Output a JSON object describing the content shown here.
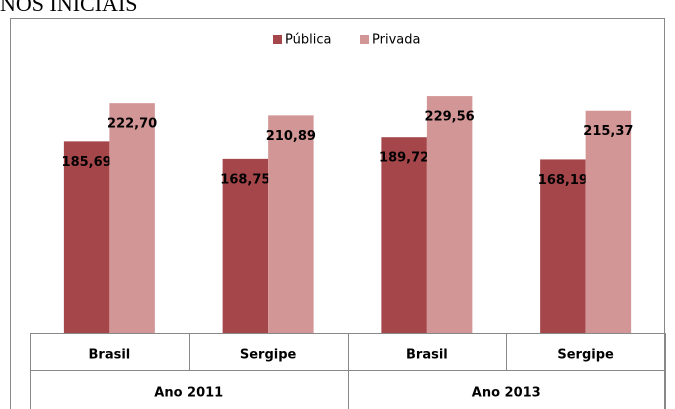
{
  "chart_data": {
    "type": "bar",
    "title": "NOS INICIAIS",
    "categories": [
      "Brasil",
      "Sergipe",
      "Brasil",
      "Sergipe"
    ],
    "groups": [
      {
        "label": "Ano 2011",
        "span": 2
      },
      {
        "label": "Ano 2013",
        "span": 2
      }
    ],
    "series": [
      {
        "name": "Pública",
        "color": "#a5474a",
        "values": [
          185.69,
          168.75,
          189.72,
          168.19
        ],
        "value_labels": [
          "185,69",
          "168,75",
          "189,72",
          "168,19"
        ]
      },
      {
        "name": "Privada",
        "color": "#d39696",
        "values": [
          222.7,
          210.89,
          229.56,
          215.37
        ],
        "value_labels": [
          "222,70",
          "210,89",
          "229,56",
          "215,37"
        ]
      }
    ],
    "legend": "top"
  }
}
